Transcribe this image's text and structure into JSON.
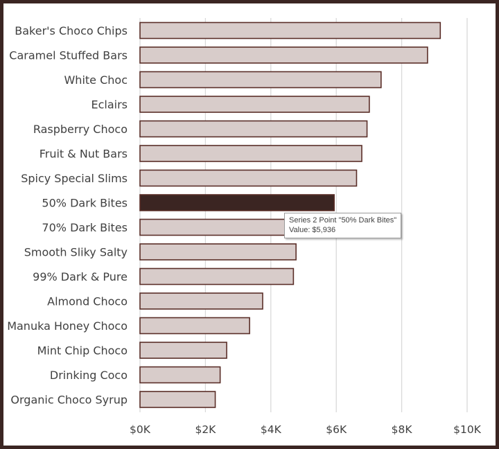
{
  "chart_data": {
    "type": "bar",
    "orientation": "horizontal",
    "categories": [
      "Baker's Choco Chips",
      "Caramel Stuffed Bars",
      "White Choc",
      "Eclairs",
      "Raspberry Choco",
      "Fruit & Nut Bars",
      "Spicy Special Slims",
      "50% Dark Bites",
      "70% Dark Bites",
      "Smooth Sliky Salty",
      "99% Dark & Pure",
      "Almond Choco",
      "Manuka Honey Choco",
      "Mint Chip Choco",
      "Drinking Coco",
      "Organic Choco Syrup"
    ],
    "values": [
      9180,
      8790,
      7370,
      7010,
      6940,
      6780,
      6620,
      5936,
      5100,
      4770,
      4690,
      3750,
      3350,
      2650,
      2450,
      2300
    ],
    "highlight_index": 7,
    "xlim": [
      0,
      10000
    ],
    "x_ticks": [
      0,
      2000,
      4000,
      6000,
      8000,
      10000
    ],
    "x_tick_labels": [
      "$0K",
      "$2K",
      "$4K",
      "$6K",
      "$8K",
      "$10K"
    ],
    "grid": "vertical",
    "colors": {
      "bar_fill": "#d8ccca",
      "bar_stroke": "#5a2e28",
      "highlight_fill": "#3b2522",
      "grid": "#d9d9d9",
      "frame": "#3b2522"
    }
  },
  "tooltip": {
    "line1": "Series 2 Point \"50% Dark Bites\"",
    "line2": "Value:  $5,936"
  }
}
